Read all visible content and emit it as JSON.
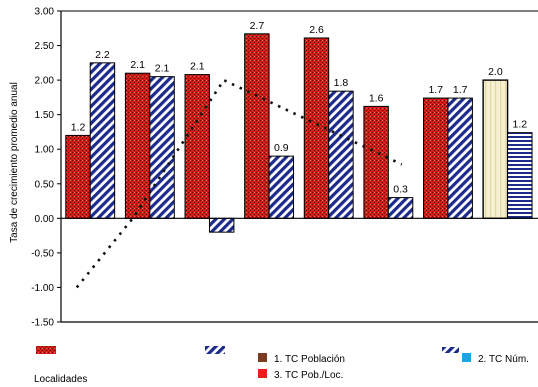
{
  "chart_data": {
    "type": "bar",
    "ylabel": "Tasa de crecimiento promedio anual",
    "ylim": [
      -1.5,
      3.0
    ],
    "yticks": [
      "3.00",
      "2.50",
      "2.00",
      "1.50",
      "1.00",
      "0.50",
      "0.00",
      "-0.50",
      "-1.00",
      "-1.50"
    ],
    "grid": false,
    "groups": [
      {
        "bars": [
          {
            "value": 1.2,
            "label": "1.2",
            "pattern": "red"
          },
          {
            "value": 2.25,
            "label": "2.2",
            "pattern": "blue"
          }
        ]
      },
      {
        "bars": [
          {
            "value": 2.1,
            "label": "2.1",
            "pattern": "red"
          },
          {
            "value": 2.05,
            "label": "2.1",
            "pattern": "blue"
          }
        ]
      },
      {
        "bars": [
          {
            "value": 2.08,
            "label": "2.1",
            "pattern": "red"
          },
          {
            "value": -0.2,
            "label": "",
            "pattern": "blue"
          }
        ]
      },
      {
        "bars": [
          {
            "value": 2.67,
            "label": "2.7",
            "pattern": "red"
          },
          {
            "value": 0.9,
            "label": "0.9",
            "pattern": "blue"
          }
        ]
      },
      {
        "bars": [
          {
            "value": 2.61,
            "label": "2.6",
            "pattern": "red"
          },
          {
            "value": 1.84,
            "label": "1.8",
            "pattern": "blue"
          }
        ]
      },
      {
        "bars": [
          {
            "value": 1.62,
            "label": "1.6",
            "pattern": "red"
          },
          {
            "value": 0.3,
            "label": "0.3",
            "pattern": "blue"
          }
        ]
      },
      {
        "bars": [
          {
            "value": 1.74,
            "label": "1.7",
            "pattern": "red"
          },
          {
            "value": 1.74,
            "label": "1.7",
            "pattern": "blue"
          }
        ]
      },
      {
        "bars": [
          {
            "value": 2.0,
            "label": "2.0",
            "pattern": "cream"
          },
          {
            "value": 1.24,
            "label": "1.2",
            "pattern": "bluestripe"
          }
        ]
      }
    ],
    "dotted_line": [
      {
        "group": 0,
        "value": -1.0
      },
      {
        "group": 1,
        "value": 0.0
      },
      {
        "group": 3,
        "value": 2.0
      },
      {
        "group": 5,
        "value": 0.78
      }
    ],
    "legend": [
      {
        "label": "Localidades",
        "marker": "red-pattern"
      },
      {
        "label": "",
        "marker": "blue-pattern"
      },
      {
        "label": "1.  TC Población",
        "marker": "brown-square"
      },
      {
        "label": "3.  TC Pob./Loc.",
        "marker": "red-square"
      },
      {
        "label": "2.  TC Núm.",
        "marker": "blue-square"
      },
      {
        "label": "",
        "marker": "hatch-pattern"
      }
    ],
    "colors": {
      "red": "#e8201c",
      "dark_red": "#8a0d0a",
      "blue": "#1c2a8a",
      "hatch": "#ffffff",
      "axis": "#000000",
      "brown": "#7a3b20",
      "cyan": "#1aa6e0",
      "cream": "#f4efd0"
    }
  }
}
